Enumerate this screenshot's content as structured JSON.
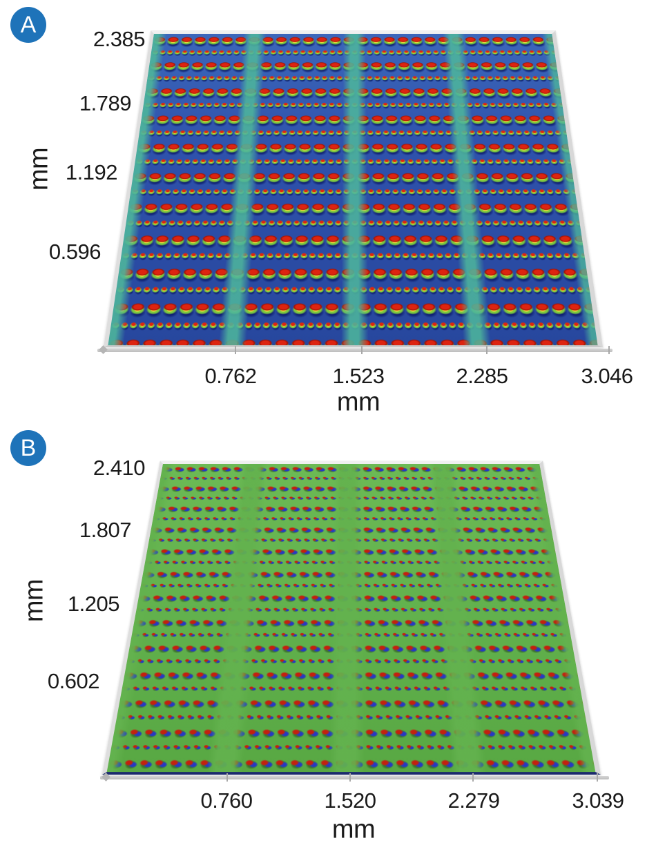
{
  "figure": {
    "background": "#ffffff",
    "badge_color": "#1e73b9",
    "badge_text_color": "#ffffff"
  },
  "chart_data": [
    {
      "panel": "A",
      "type": "heatmap",
      "subtype": "3d-perspective-surface-height-map",
      "xlabel": "mm",
      "ylabel": "mm",
      "x_ticks": [
        "0.762",
        "1.523",
        "2.285",
        "3.046"
      ],
      "y_ticks": [
        "2.385",
        "1.789",
        "1.192",
        "0.596"
      ],
      "x_range_mm": [
        0,
        3.046
      ],
      "y_range_mm": [
        0,
        2.385
      ],
      "grid": false,
      "legend": "none",
      "palette": {
        "substrate": "#2c4fa6",
        "channel_streak": "#4db59c",
        "feature_top": "#dd2410",
        "feature_rim_yellow": "#f5d93e",
        "feature_rim_green": "#7cc93f",
        "feature_shadow": "#0d1c6e",
        "frame": "#e3e3e3"
      },
      "content_summary": "Blue substrate imaged in tilted 3D perspective; four column groups of raised deposits separated by teal vertical channels; rows alternate large red-topped rectangular deposits with yellow-green height-gradient rims and dark navy shadows, and rows of small dots."
    },
    {
      "panel": "B",
      "type": "heatmap",
      "subtype": "3d-perspective-difference-map",
      "xlabel": "mm",
      "ylabel": "mm",
      "x_ticks": [
        "0.760",
        "1.520",
        "2.279",
        "3.039"
      ],
      "y_ticks": [
        "2.410",
        "1.807",
        "1.205",
        "0.602"
      ],
      "x_range_mm": [
        0,
        3.039
      ],
      "y_range_mm": [
        0,
        2.41
      ],
      "grid": false,
      "legend": "none",
      "palette": {
        "substrate": "#63b24e",
        "feature_positive": "#c4200e",
        "feature_negative": "#2639c4",
        "feature_shade": "#224a1a",
        "frame": "#e3e3e3"
      },
      "content_summary": "Green substrate imaged in tilted 3D perspective; same four-column deposit layout rendered as paired red/blue lobes (signed deviation) on flat green background with plain vertical channels between groups."
    }
  ]
}
